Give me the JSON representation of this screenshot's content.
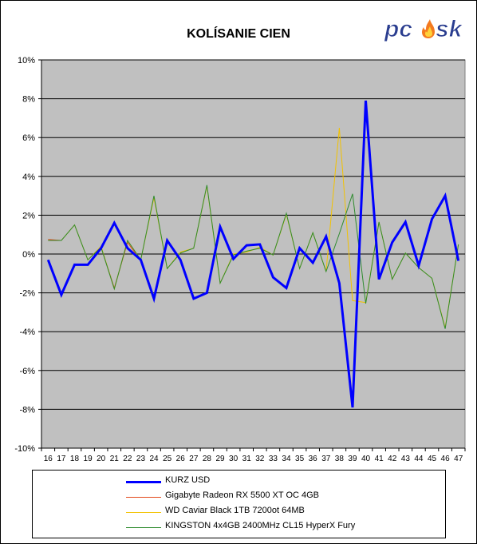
{
  "chart_data": {
    "type": "line",
    "title": "KOLÍSANIE CIEN",
    "xlabel": "",
    "ylabel": "",
    "categories": [
      "16",
      "17",
      "18",
      "19",
      "20",
      "21",
      "22",
      "23",
      "24",
      "25",
      "26",
      "27",
      "28",
      "29",
      "30",
      "31",
      "32",
      "33",
      "34",
      "35",
      "36",
      "37",
      "38",
      "39",
      "40",
      "41",
      "42",
      "43",
      "44",
      "45",
      "46",
      "47"
    ],
    "y_ticks": [
      "10%",
      "8%",
      "6%",
      "4%",
      "2%",
      "0%",
      "-2%",
      "-4%",
      "-6%",
      "-8%",
      "-10%"
    ],
    "ylim": [
      -10,
      10
    ],
    "grid": "horizontal",
    "legend_position": "bottom",
    "series": [
      {
        "name": "KURZ USD",
        "color": "#0000ff",
        "width": 3,
        "values": [
          -0.3,
          -2.1,
          -0.55,
          -0.55,
          0.3,
          1.6,
          0.3,
          -0.3,
          -2.3,
          0.7,
          -0.3,
          -2.3,
          -2.0,
          1.4,
          -0.25,
          0.45,
          0.5,
          -1.2,
          -1.75,
          0.3,
          -0.45,
          0.9,
          -1.5,
          -7.9,
          7.9,
          -1.3,
          0.6,
          1.65,
          -0.6,
          1.8,
          3.0,
          -0.35
        ]
      },
      {
        "name": "Gigabyte Radeon RX 5500 XT OC 4GB",
        "color": "#e34a1c",
        "width": 1,
        "values": [
          0.75,
          0.7,
          null,
          null,
          0.35,
          -1.75,
          0.6,
          -0.35,
          null,
          null,
          null,
          null,
          null,
          null,
          null,
          null,
          null,
          null,
          null,
          null,
          null,
          null,
          null,
          null,
          null,
          null,
          null,
          null,
          null,
          null,
          null,
          null
        ]
      },
      {
        "name": "WD Caviar Black 1TB 7200ot 64MB",
        "color": "#f2c200",
        "width": 1,
        "values": [
          0.7,
          0.7,
          1.5,
          -0.3,
          0.4,
          -1.8,
          0.7,
          -0.3,
          2.9,
          -0.75,
          0.1,
          0.3,
          3.5,
          -1.5,
          0.0,
          0.1,
          0.35,
          -0.05,
          2.05,
          -0.75,
          1.1,
          -0.9,
          6.5,
          -2.4,
          -2.5,
          1.65,
          -1.3,
          0.05,
          -0.7,
          -1.25,
          -3.8,
          0.5
        ]
      },
      {
        "name": "KINGSTON 4x4GB 2400MHz CL15 HyperX Fury",
        "color": "#2e8b2e",
        "width": 1,
        "values": [
          0.7,
          0.7,
          1.5,
          -0.3,
          0.35,
          -1.8,
          0.7,
          -0.3,
          3.0,
          -0.75,
          0.05,
          0.3,
          3.55,
          -1.5,
          -0.05,
          0.15,
          0.3,
          -0.05,
          2.1,
          -0.75,
          1.1,
          -0.9,
          1.05,
          3.1,
          -2.55,
          1.65,
          -1.3,
          0.05,
          -0.7,
          -1.25,
          -3.85,
          0.5
        ]
      }
    ]
  },
  "logo": {
    "text_left": "pc",
    "text_right": "sk"
  }
}
